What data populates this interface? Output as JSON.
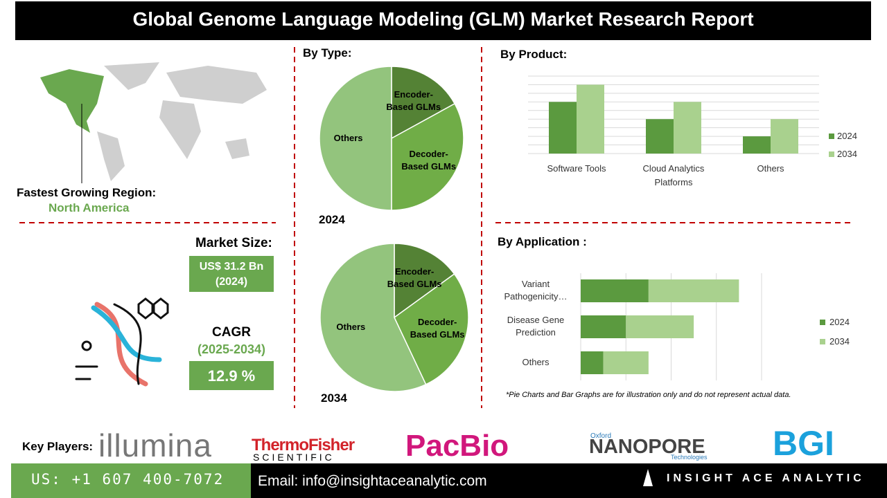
{
  "header": {
    "title": "Global Genome Language Modeling (GLM) Market Research Report"
  },
  "region": {
    "label": "Fastest Growing Region:",
    "value": "North America"
  },
  "market_size": {
    "label": "Market Size:",
    "value": "US$ 31.2 Bn",
    "year": "(2024)"
  },
  "cagr": {
    "label": "CAGR",
    "period": "(2025-2034)",
    "value": "12.9 %"
  },
  "sections": {
    "type": "By Type:",
    "product": "By  Product:",
    "application": "By Application :"
  },
  "chart_data": [
    {
      "type": "pie",
      "title": "2024",
      "categories": [
        "Encoder-Based GLMs",
        "Decoder-Based GLMs",
        "Others"
      ],
      "values": [
        17,
        33,
        50
      ],
      "colors": [
        "#548235",
        "#70ad47",
        "#93c47d"
      ]
    },
    {
      "type": "pie",
      "title": "2034",
      "categories": [
        "Encoder-Based GLMs",
        "Decoder-Based GLMs",
        "Others"
      ],
      "values": [
        15,
        28,
        57
      ],
      "colors": [
        "#548235",
        "#70ad47",
        "#93c47d"
      ]
    },
    {
      "type": "bar",
      "categories": [
        "Software Tools",
        "Cloud Analytics Platforms",
        "Others"
      ],
      "series": [
        {
          "name": "2024",
          "color": "#5b9a3f",
          "values": [
            6,
            4,
            2
          ]
        },
        {
          "name": "2034",
          "color": "#a9d18e",
          "values": [
            8,
            6,
            4
          ]
        }
      ],
      "ylim": [
        0,
        9
      ],
      "yticks": [
        0,
        1,
        2,
        3,
        4,
        5,
        6,
        7,
        8,
        9
      ],
      "grid": true,
      "legend": "right"
    },
    {
      "type": "hbar",
      "stacked": true,
      "categories": [
        "Variant Pathogenicity…",
        "Disease Gene Prediction",
        "Others"
      ],
      "series": [
        {
          "name": "2024",
          "color": "#5b9a3f",
          "values": [
            1.5,
            1,
            0.5
          ]
        },
        {
          "name": "2034",
          "color": "#a9d18e",
          "values": [
            2,
            1.5,
            1
          ]
        }
      ],
      "xlim": [
        0,
        4
      ],
      "xticks": [
        0,
        1,
        2,
        3,
        4
      ],
      "grid": true,
      "legend": "right"
    }
  ],
  "note": "*Pie Charts and Bar Graphs are for illustration only and do not represent actual data.",
  "key_players": {
    "label": "Key Players:",
    "illumina": "illumina",
    "thermo": "ThermoFisher",
    "thermo_sub": "SCIENTIFIC",
    "pacbio": "PacBio",
    "oxford": "Oxford",
    "nanopore": "NANOPORE",
    "nanopore_sub": "Technologies",
    "bgi": "BGI"
  },
  "footer": {
    "phone": "US: +1 607 400-7072",
    "email": "Email: info@insightaceanalytic.com",
    "brand": "INSIGHT ACE ANALYTIC"
  }
}
